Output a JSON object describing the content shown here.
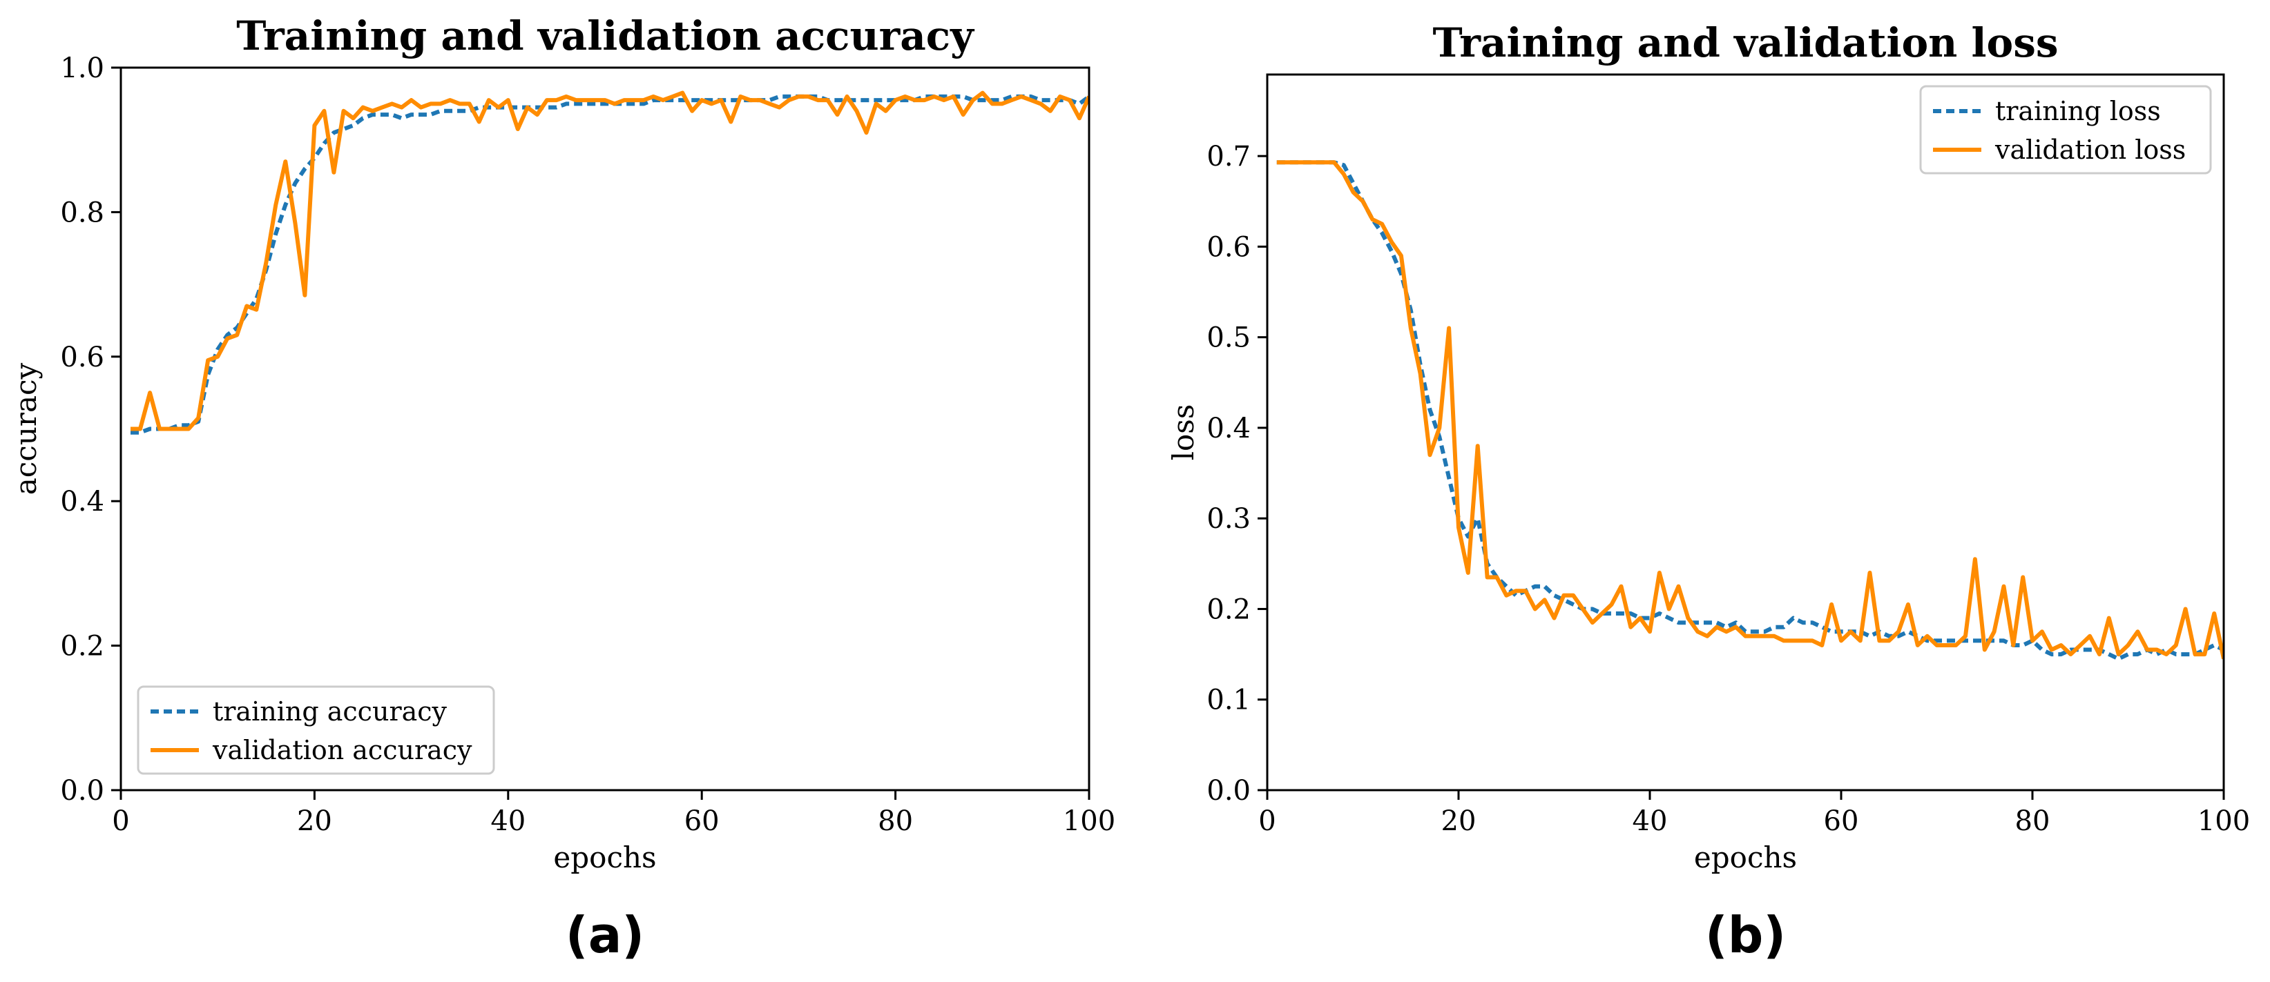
{
  "chart_data": [
    {
      "type": "line",
      "title": "Training and validation accuracy",
      "xlabel": "epochs",
      "ylabel": "accuracy",
      "xlim": [
        0,
        100
      ],
      "ylim": [
        0,
        1.0
      ],
      "xticks": [
        0,
        20,
        40,
        60,
        80,
        100
      ],
      "yticks": [
        0.0,
        0.2,
        0.4,
        0.6,
        0.8,
        1.0
      ],
      "yticklabels": [
        "0.0",
        "0.2",
        "0.4",
        "0.6",
        "0.8",
        "1.0"
      ],
      "grid": false,
      "legend": "lower-left",
      "panel_label": "(a)",
      "series": [
        {
          "name": "training accuracy",
          "style": "dashed",
          "color": "#1f77b4",
          "x": [
            1,
            2,
            3,
            4,
            5,
            6,
            7,
            8,
            9,
            10,
            11,
            12,
            13,
            14,
            15,
            16,
            17,
            18,
            19,
            20,
            21,
            22,
            23,
            24,
            25,
            26,
            27,
            28,
            29,
            30,
            31,
            32,
            33,
            34,
            35,
            36,
            37,
            38,
            39,
            40,
            41,
            42,
            43,
            44,
            45,
            46,
            47,
            48,
            49,
            50,
            51,
            52,
            53,
            54,
            55,
            56,
            57,
            58,
            59,
            60,
            61,
            62,
            63,
            64,
            65,
            66,
            67,
            68,
            69,
            70,
            71,
            72,
            73,
            74,
            75,
            76,
            77,
            78,
            79,
            80,
            81,
            82,
            83,
            84,
            85,
            86,
            87,
            88,
            89,
            90,
            91,
            92,
            93,
            94,
            95,
            96,
            97,
            98,
            99,
            100
          ],
          "y": [
            0.495,
            0.495,
            0.5,
            0.5,
            0.5,
            0.505,
            0.505,
            0.51,
            0.575,
            0.61,
            0.63,
            0.64,
            0.66,
            0.68,
            0.72,
            0.77,
            0.81,
            0.84,
            0.86,
            0.875,
            0.895,
            0.91,
            0.915,
            0.92,
            0.93,
            0.935,
            0.935,
            0.935,
            0.93,
            0.935,
            0.935,
            0.935,
            0.94,
            0.94,
            0.94,
            0.94,
            0.945,
            0.945,
            0.945,
            0.945,
            0.945,
            0.945,
            0.945,
            0.945,
            0.945,
            0.95,
            0.95,
            0.95,
            0.95,
            0.95,
            0.95,
            0.95,
            0.95,
            0.95,
            0.955,
            0.955,
            0.955,
            0.955,
            0.955,
            0.955,
            0.955,
            0.955,
            0.955,
            0.955,
            0.955,
            0.955,
            0.955,
            0.96,
            0.96,
            0.96,
            0.96,
            0.96,
            0.955,
            0.955,
            0.955,
            0.955,
            0.955,
            0.955,
            0.955,
            0.955,
            0.955,
            0.955,
            0.96,
            0.96,
            0.96,
            0.96,
            0.96,
            0.955,
            0.955,
            0.955,
            0.955,
            0.96,
            0.96,
            0.96,
            0.955,
            0.955,
            0.955,
            0.955,
            0.95,
            0.96
          ]
        },
        {
          "name": "validation accuracy",
          "style": "solid",
          "color": "#ff8c00",
          "x": [
            1,
            2,
            3,
            4,
            5,
            6,
            7,
            8,
            9,
            10,
            11,
            12,
            13,
            14,
            15,
            16,
            17,
            18,
            19,
            20,
            21,
            22,
            23,
            24,
            25,
            26,
            27,
            28,
            29,
            30,
            31,
            32,
            33,
            34,
            35,
            36,
            37,
            38,
            39,
            40,
            41,
            42,
            43,
            44,
            45,
            46,
            47,
            48,
            49,
            50,
            51,
            52,
            53,
            54,
            55,
            56,
            57,
            58,
            59,
            60,
            61,
            62,
            63,
            64,
            65,
            66,
            67,
            68,
            69,
            70,
            71,
            72,
            73,
            74,
            75,
            76,
            77,
            78,
            79,
            80,
            81,
            82,
            83,
            84,
            85,
            86,
            87,
            88,
            89,
            90,
            91,
            92,
            93,
            94,
            95,
            96,
            97,
            98,
            99,
            100
          ],
          "y": [
            0.5,
            0.5,
            0.55,
            0.5,
            0.5,
            0.5,
            0.5,
            0.515,
            0.595,
            0.6,
            0.625,
            0.63,
            0.67,
            0.665,
            0.73,
            0.81,
            0.87,
            0.785,
            0.685,
            0.92,
            0.94,
            0.855,
            0.94,
            0.93,
            0.945,
            0.94,
            0.945,
            0.95,
            0.945,
            0.955,
            0.945,
            0.95,
            0.95,
            0.955,
            0.95,
            0.95,
            0.925,
            0.955,
            0.945,
            0.955,
            0.915,
            0.945,
            0.935,
            0.955,
            0.955,
            0.96,
            0.955,
            0.955,
            0.955,
            0.955,
            0.95,
            0.955,
            0.955,
            0.955,
            0.96,
            0.955,
            0.96,
            0.965,
            0.94,
            0.955,
            0.95,
            0.955,
            0.925,
            0.96,
            0.955,
            0.955,
            0.95,
            0.945,
            0.955,
            0.96,
            0.96,
            0.955,
            0.955,
            0.935,
            0.96,
            0.94,
            0.91,
            0.95,
            0.94,
            0.955,
            0.96,
            0.955,
            0.955,
            0.96,
            0.955,
            0.96,
            0.935,
            0.955,
            0.965,
            0.95,
            0.95,
            0.955,
            0.96,
            0.955,
            0.95,
            0.94,
            0.96,
            0.955,
            0.93,
            0.96
          ]
        }
      ]
    },
    {
      "type": "line",
      "title": "Training and validation loss",
      "xlabel": "epochs",
      "ylabel": "loss",
      "xlim": [
        0,
        100
      ],
      "ylim": [
        0,
        0.79
      ],
      "xticks": [
        0,
        20,
        40,
        60,
        80,
        100
      ],
      "yticks": [
        0.0,
        0.1,
        0.2,
        0.3,
        0.4,
        0.5,
        0.6,
        0.7
      ],
      "yticklabels": [
        "0.0",
        "0.1",
        "0.2",
        "0.3",
        "0.4",
        "0.5",
        "0.6",
        "0.7"
      ],
      "grid": false,
      "legend": "upper-right",
      "panel_label": "(b)",
      "series": [
        {
          "name": "training loss",
          "style": "dashed",
          "color": "#1f77b4",
          "x": [
            1,
            2,
            3,
            4,
            5,
            6,
            7,
            8,
            9,
            10,
            11,
            12,
            13,
            14,
            15,
            16,
            17,
            18,
            19,
            20,
            21,
            22,
            23,
            24,
            25,
            26,
            27,
            28,
            29,
            30,
            31,
            32,
            33,
            34,
            35,
            36,
            37,
            38,
            39,
            40,
            41,
            42,
            43,
            44,
            45,
            46,
            47,
            48,
            49,
            50,
            51,
            52,
            53,
            54,
            55,
            56,
            57,
            58,
            59,
            60,
            61,
            62,
            63,
            64,
            65,
            66,
            67,
            68,
            69,
            70,
            71,
            72,
            73,
            74,
            75,
            76,
            77,
            78,
            79,
            80,
            81,
            82,
            83,
            84,
            85,
            86,
            87,
            88,
            89,
            90,
            91,
            92,
            93,
            94,
            95,
            96,
            97,
            98,
            99,
            100
          ],
          "y": [
            0.693,
            0.693,
            0.693,
            0.693,
            0.693,
            0.693,
            0.693,
            0.69,
            0.67,
            0.65,
            0.63,
            0.615,
            0.595,
            0.57,
            0.53,
            0.47,
            0.42,
            0.39,
            0.345,
            0.3,
            0.28,
            0.3,
            0.25,
            0.235,
            0.225,
            0.215,
            0.22,
            0.225,
            0.225,
            0.215,
            0.21,
            0.205,
            0.2,
            0.2,
            0.195,
            0.195,
            0.195,
            0.195,
            0.19,
            0.19,
            0.195,
            0.19,
            0.185,
            0.185,
            0.185,
            0.185,
            0.185,
            0.18,
            0.185,
            0.175,
            0.175,
            0.175,
            0.18,
            0.18,
            0.19,
            0.185,
            0.185,
            0.18,
            0.175,
            0.175,
            0.175,
            0.175,
            0.17,
            0.175,
            0.17,
            0.17,
            0.175,
            0.17,
            0.165,
            0.165,
            0.165,
            0.165,
            0.165,
            0.165,
            0.165,
            0.165,
            0.165,
            0.16,
            0.16,
            0.165,
            0.155,
            0.15,
            0.15,
            0.155,
            0.155,
            0.155,
            0.155,
            0.15,
            0.145,
            0.15,
            0.15,
            0.155,
            0.15,
            0.155,
            0.15,
            0.15,
            0.15,
            0.155,
            0.16,
            0.155
          ]
        },
        {
          "name": "validation loss",
          "style": "solid",
          "color": "#ff8c00",
          "x": [
            1,
            2,
            3,
            4,
            5,
            6,
            7,
            8,
            9,
            10,
            11,
            12,
            13,
            14,
            15,
            16,
            17,
            18,
            19,
            20,
            21,
            22,
            23,
            24,
            25,
            26,
            27,
            28,
            29,
            30,
            31,
            32,
            33,
            34,
            35,
            36,
            37,
            38,
            39,
            40,
            41,
            42,
            43,
            44,
            45,
            46,
            47,
            48,
            49,
            50,
            51,
            52,
            53,
            54,
            55,
            56,
            57,
            58,
            59,
            60,
            61,
            62,
            63,
            64,
            65,
            66,
            67,
            68,
            69,
            70,
            71,
            72,
            73,
            74,
            75,
            76,
            77,
            78,
            79,
            80,
            81,
            82,
            83,
            84,
            85,
            86,
            87,
            88,
            89,
            90,
            91,
            92,
            93,
            94,
            95,
            96,
            97,
            98,
            99,
            100
          ],
          "y": [
            0.693,
            0.693,
            0.693,
            0.693,
            0.693,
            0.693,
            0.693,
            0.68,
            0.66,
            0.65,
            0.63,
            0.625,
            0.605,
            0.59,
            0.51,
            0.46,
            0.37,
            0.4,
            0.51,
            0.29,
            0.24,
            0.38,
            0.235,
            0.235,
            0.215,
            0.22,
            0.22,
            0.2,
            0.21,
            0.19,
            0.215,
            0.215,
            0.2,
            0.185,
            0.195,
            0.205,
            0.225,
            0.18,
            0.19,
            0.175,
            0.24,
            0.2,
            0.225,
            0.19,
            0.175,
            0.17,
            0.18,
            0.175,
            0.18,
            0.17,
            0.17,
            0.17,
            0.17,
            0.165,
            0.165,
            0.165,
            0.165,
            0.16,
            0.205,
            0.165,
            0.175,
            0.165,
            0.24,
            0.165,
            0.165,
            0.175,
            0.205,
            0.16,
            0.17,
            0.16,
            0.16,
            0.16,
            0.17,
            0.255,
            0.155,
            0.175,
            0.225,
            0.16,
            0.235,
            0.165,
            0.175,
            0.155,
            0.16,
            0.15,
            0.16,
            0.17,
            0.15,
            0.19,
            0.15,
            0.16,
            0.175,
            0.155,
            0.155,
            0.15,
            0.16,
            0.2,
            0.15,
            0.15,
            0.195,
            0.145
          ]
        }
      ]
    }
  ]
}
